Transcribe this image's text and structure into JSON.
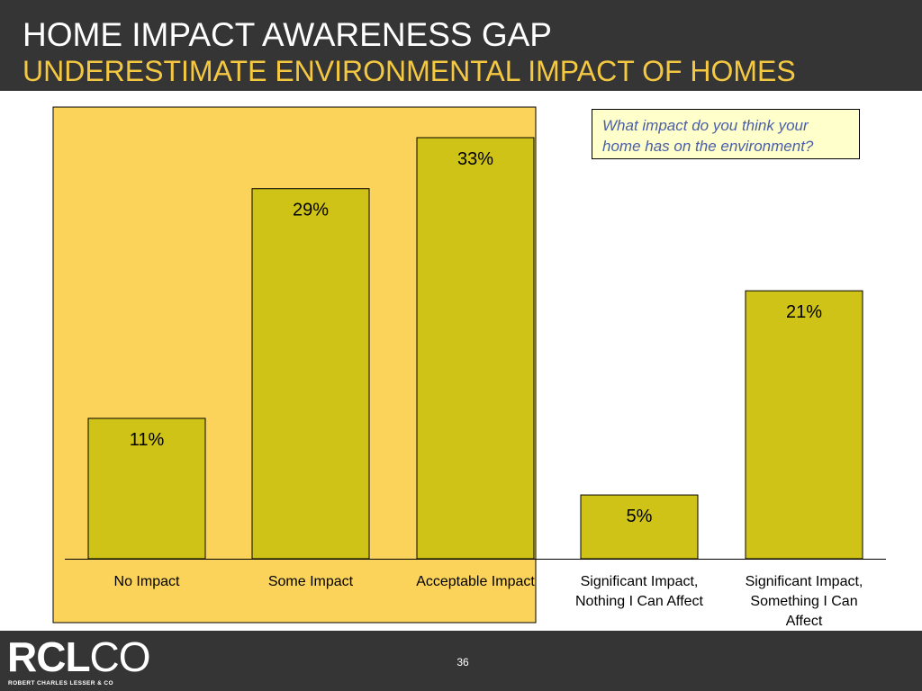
{
  "slide": {
    "title": "HOME IMPACT AWARENESS GAP",
    "subtitle": "UNDERESTIMATE ENVIRONMENTAL IMPACT OF HOMES",
    "question": "What impact do you think your home has on the environment?",
    "page_number": "36"
  },
  "logo": {
    "mark_bold": "RCL",
    "mark_light": "CO",
    "tagline": "ROBERT CHARLES LESSER & CO"
  },
  "colors": {
    "header_bg": "#353535",
    "title": "#ffffff",
    "subtitle": "#f5c842",
    "highlight": "#fbd35a",
    "bar_fill": "#cfc317",
    "bar_stroke": "#000000",
    "question_bg": "#ffffcc",
    "question_text": "#4a5fa8"
  },
  "chart_data": {
    "type": "bar",
    "title": "",
    "xlabel": "",
    "ylabel": "",
    "categories": [
      [
        "No Impact"
      ],
      [
        "Some Impact"
      ],
      [
        "Acceptable Impact"
      ],
      [
        "Significant Impact,",
        "Nothing I Can Affect"
      ],
      [
        "Significant Impact,",
        "Something I Can",
        "Affect"
      ]
    ],
    "values": [
      11,
      29,
      33,
      5,
      21
    ],
    "data_labels": [
      "11%",
      "29%",
      "33%",
      "5%",
      "21%"
    ],
    "unit": "%",
    "ylim": [
      0,
      33
    ],
    "grid": false,
    "legend": "none",
    "highlighted_categories": [
      0,
      1,
      2
    ]
  }
}
